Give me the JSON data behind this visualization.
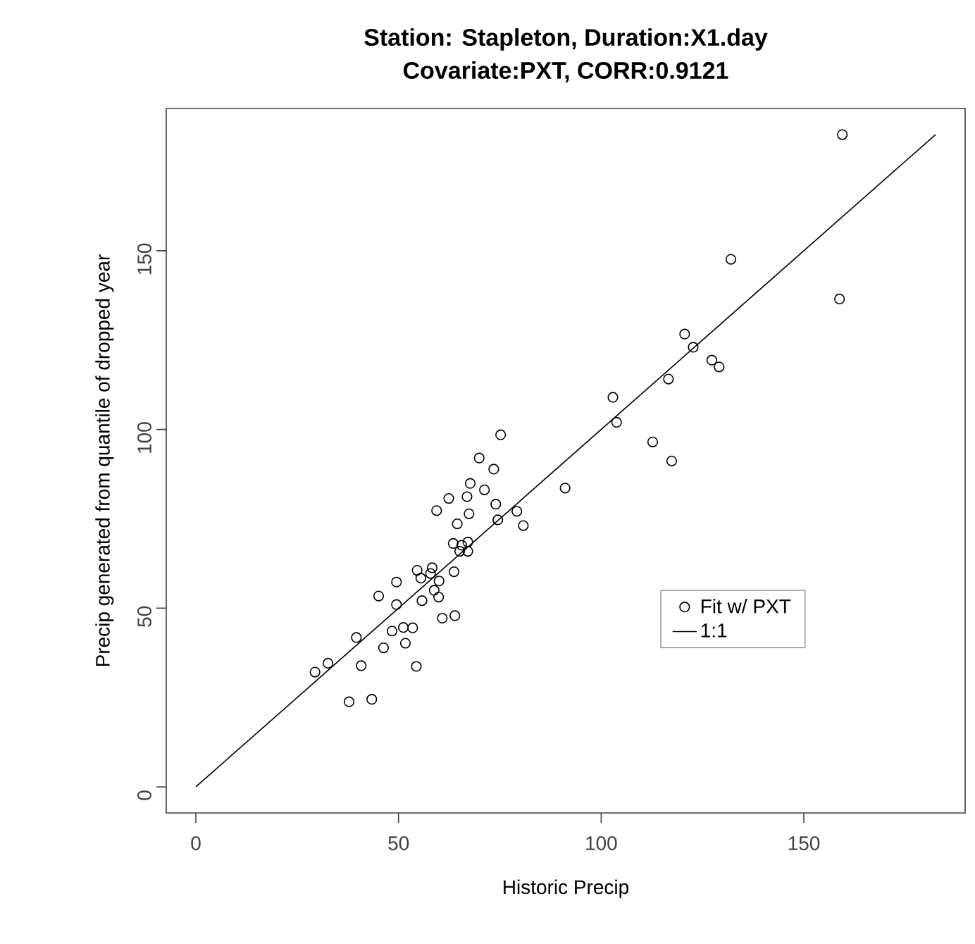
{
  "chart_data": {
    "type": "scatter",
    "title": "Station: Stapleton, Duration:X1.day",
    "subtitle": "Covariate:PXT, CORR:0.9121",
    "xlabel": "Historic Precip",
    "ylabel": "Precip generated from quantile of dropped year",
    "xlim": [
      -7.3,
      189.8
    ],
    "ylim": [
      -7.3,
      189.8
    ],
    "xticks": [
      0,
      50,
      100,
      150
    ],
    "yticks": [
      0,
      50,
      100,
      150
    ],
    "grid": false,
    "legend": "bottom right",
    "series": [
      {
        "name": "Fit w/ PXT",
        "marker": "circle",
        "color": "#000000",
        "x": [
          159.5,
          158.8,
          132.0,
          120.6,
          122.7,
          127.3,
          129.1,
          116.6,
          102.9,
          103.8,
          112.7,
          117.4,
          91.1,
          75.2,
          69.9,
          73.5,
          67.7,
          71.2,
          62.4,
          66.9,
          59.4,
          74.0,
          67.4,
          79.2,
          64.5,
          74.5,
          80.8,
          63.5,
          67.1,
          65.6,
          65.1,
          67.1,
          54.6,
          58.3,
          63.7,
          55.5,
          57.9,
          60.0,
          49.5,
          58.8,
          45.1,
          59.9,
          55.8,
          49.5,
          60.8,
          63.9,
          39.6,
          51.2,
          53.5,
          48.4,
          46.3,
          51.7,
          32.6,
          29.4,
          40.8,
          54.4,
          37.8,
          43.4
        ],
        "values": [
          182.5,
          136.5,
          147.6,
          126.7,
          123.0,
          119.4,
          117.5,
          114.1,
          109.0,
          102.0,
          96.5,
          91.2,
          83.6,
          98.5,
          92.0,
          88.9,
          84.9,
          83.1,
          80.7,
          81.2,
          77.3,
          79.1,
          76.4,
          77.1,
          73.6,
          74.7,
          73.1,
          68.1,
          68.5,
          67.6,
          65.9,
          65.9,
          60.6,
          61.3,
          60.2,
          58.4,
          59.7,
          57.6,
          57.3,
          55.0,
          53.4,
          53.1,
          52.1,
          51.0,
          47.2,
          47.9,
          41.8,
          44.6,
          44.5,
          43.6,
          38.9,
          40.2,
          34.6,
          32.1,
          33.9,
          33.7,
          23.8,
          24.5
        ]
      },
      {
        "name": "1:1",
        "type": "line",
        "color": "#000000",
        "x": [
          0,
          182.5
        ],
        "values": [
          0,
          182.5
        ]
      }
    ]
  }
}
